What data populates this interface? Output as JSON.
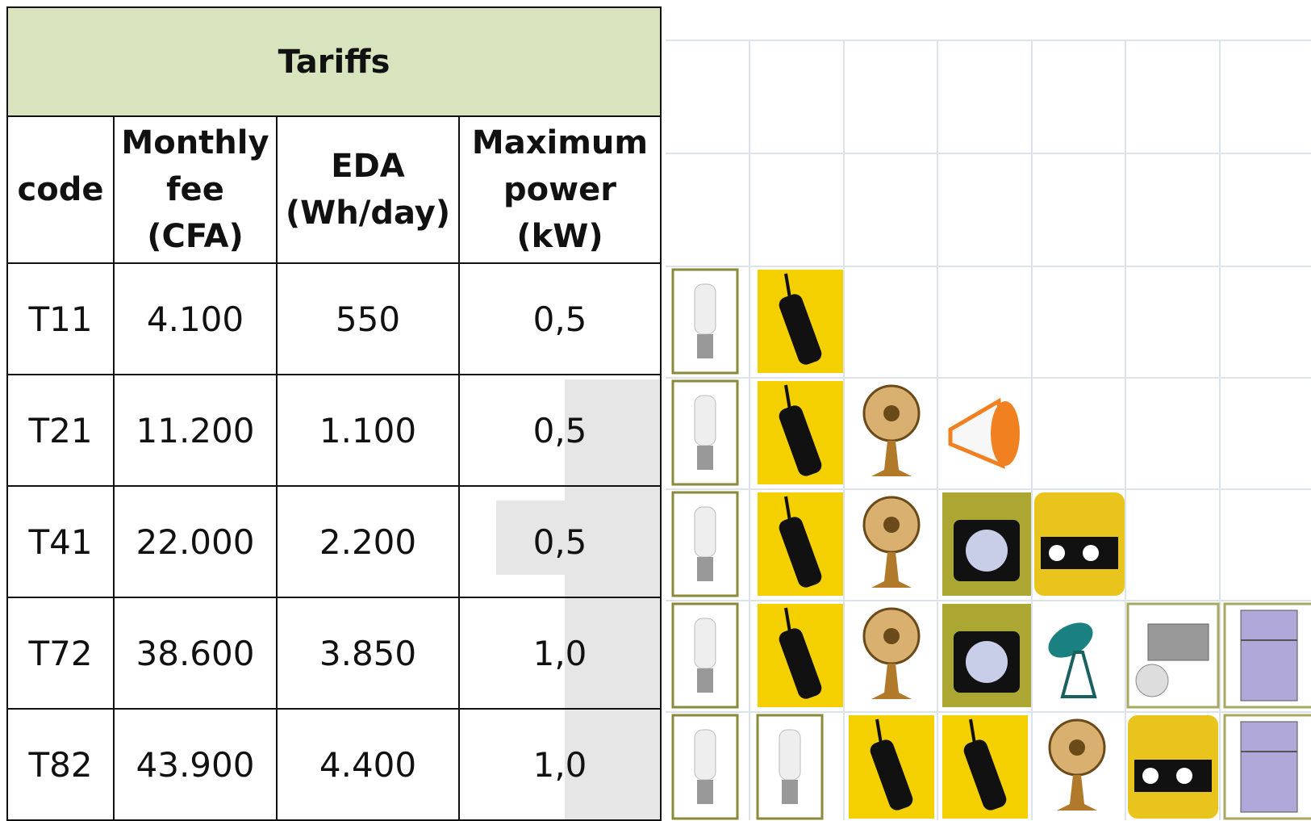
{
  "table": {
    "title": "Tariffs",
    "header": [
      [
        "code"
      ],
      [
        "Monthly",
        "fee",
        "(CFA)"
      ],
      [
        "EDA",
        "(Wh/day)"
      ],
      [
        "Maximum",
        "power",
        "(kW)"
      ]
    ],
    "rows": [
      [
        "T11",
        "4.100",
        "550",
        "0,5"
      ],
      [
        "T21",
        "11.200",
        "1.100",
        "0,5"
      ],
      [
        "T41",
        "22.000",
        "2.200",
        "0,5"
      ],
      [
        "T72",
        "38.600",
        "3.850",
        "1,0"
      ],
      [
        "T82",
        "43.900",
        "4.400",
        "1,0"
      ]
    ]
  }
}
